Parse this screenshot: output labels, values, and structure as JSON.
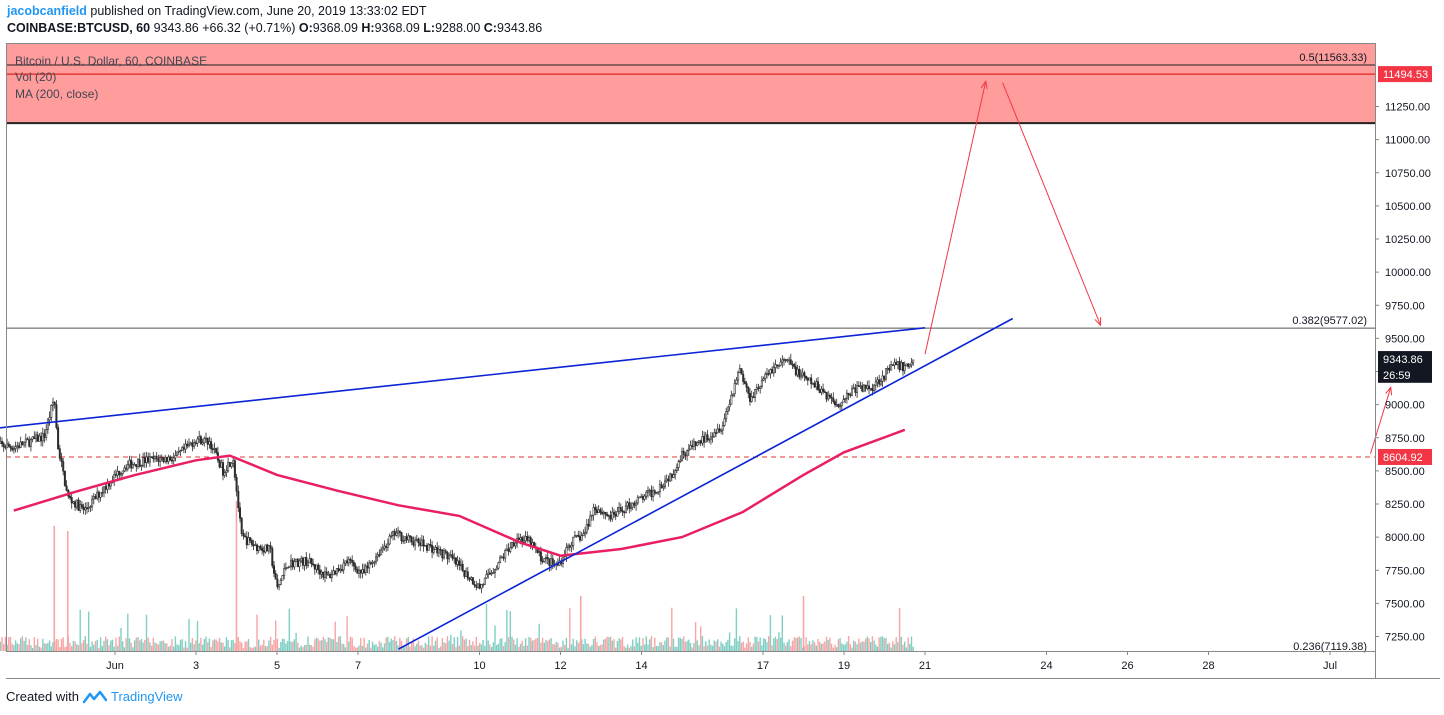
{
  "header": {
    "author": "jacobcanfield",
    "published_text": " published on TradingView.com, June 20, 2019 13:33:02 EDT",
    "symbol": "COINBASE:BTCUSD, 60",
    "last": "9343.86",
    "change": "+66.32 (+0.71%)",
    "o_label": "O:",
    "o": "9368.09",
    "h_label": "H:",
    "h": "9368.09",
    "l_label": "L:",
    "l": "9288.00",
    "c_label": "C:",
    "c": "9343.86"
  },
  "legend": {
    "title": "Bitcoin / U.S. Dollar, 60, COINBASE",
    "vol": "Vol (20)",
    "ma": "MA (200, close)"
  },
  "footer": {
    "created_with": "Created with",
    "brand": "TradingView"
  },
  "colors": {
    "up": "#2b2b2b",
    "down": "#2b2b2b",
    "ma": "#e91e63",
    "trend": "#0a24d6",
    "zone": "#ff9d9d",
    "arrow": "#f23645",
    "vol_up": "#7fcfc4",
    "vol_down": "#f7a6a6"
  },
  "chart_data": {
    "type": "candlestick",
    "y_axis": {
      "range": [
        7150,
        11650
      ],
      "ticks": [
        "11250.00",
        "11000.00",
        "10750.00",
        "10500.00",
        "10250.00",
        "10000.00",
        "9750.00",
        "9500.00",
        "9250.00",
        "9000.00",
        "8750.00",
        "8500.00",
        "8250.00",
        "8000.00",
        "7750.00",
        "7500.00",
        "7250.00"
      ]
    },
    "x_axis": {
      "ticks": [
        "Jun",
        "3",
        "5",
        "7",
        "10",
        "12",
        "14",
        "17",
        "19",
        "21",
        "24",
        "26",
        "28",
        "Jul"
      ]
    },
    "price_tags": [
      {
        "label": "11494.53",
        "value": 11494.53,
        "style": "red"
      },
      {
        "label": "9343.86",
        "value": 9343.86,
        "style": "dark"
      },
      {
        "label": "26:59",
        "value": 9225,
        "style": "dark"
      },
      {
        "label": "8604.92",
        "value": 8604.92,
        "style": "red"
      }
    ],
    "fib_levels": [
      {
        "label": "0.5(11563.33)",
        "value": 11563.33
      },
      {
        "label": "0.382(9577.02)",
        "value": 9577.02
      },
      {
        "label": "0.236(7119.38)",
        "value": 7119.38
      }
    ],
    "resistance_zone": {
      "from": 11125,
      "to": 11640,
      "line": 11494.53
    },
    "dashed_level": 8604.92,
    "last_price": 9343.86,
    "ma200": [
      {
        "date": "May 29 12:00",
        "price": 8200
      },
      {
        "date": "May 31 00:00",
        "price": 8340
      },
      {
        "date": "Jun 1 12:00",
        "price": 8470
      },
      {
        "date": "Jun 3 00:00",
        "price": 8580
      },
      {
        "date": "Jun 3 20:00",
        "price": 8615
      },
      {
        "date": "Jun 5 00:00",
        "price": 8470
      },
      {
        "date": "Jun 6 12:00",
        "price": 8350
      },
      {
        "date": "Jun 8 00:00",
        "price": 8240
      },
      {
        "date": "Jun 9 12:00",
        "price": 8160
      },
      {
        "date": "Jun 11 00:00",
        "price": 7960
      },
      {
        "date": "Jun 12 00:00",
        "price": 7860
      },
      {
        "date": "Jun 13 12:00",
        "price": 7910
      },
      {
        "date": "Jun 15 00:00",
        "price": 8000
      },
      {
        "date": "Jun 16 12:00",
        "price": 8190
      },
      {
        "date": "Jun 18 00:00",
        "price": 8470
      },
      {
        "date": "Jun 19 00:00",
        "price": 8640
      },
      {
        "date": "Jun 20 12:00",
        "price": 8810
      }
    ],
    "trendlines": [
      {
        "name": "upper",
        "from": {
          "date": "May 29 00:00",
          "price": 8820
        },
        "to": {
          "date": "Jun 21 00:00",
          "price": 9580
        }
      },
      {
        "name": "lower",
        "from": {
          "date": "Jun 8 00:00",
          "price": 7155
        },
        "to": {
          "date": "Jun 23 04:00",
          "price": 9650
        }
      }
    ],
    "arrows": [
      {
        "from": {
          "date": "Jun 21 00:00",
          "price": 9380
        },
        "to": {
          "date": "Jun 22 12:00",
          "price": 11440
        }
      },
      {
        "from": {
          "date": "Jun 22 22:00",
          "price": 11430
        },
        "to": {
          "date": "Jun 25 08:00",
          "price": 9600
        }
      },
      {
        "from": {
          "date": "Jul 2 00:00",
          "price": 8630
        },
        "to": {
          "date": "Jul 2 12:00",
          "price": 9130
        }
      }
    ],
    "price_path": [
      {
        "date": "May 29 00:00",
        "price": 8700
      },
      {
        "date": "May 29 12:00",
        "price": 8680
      },
      {
        "date": "May 30 06:00",
        "price": 8760
      },
      {
        "date": "May 30 12:00",
        "price": 9050
      },
      {
        "date": "May 30 14:00",
        "price": 8700
      },
      {
        "date": "May 30 20:00",
        "price": 8300
      },
      {
        "date": "May 31 06:00",
        "price": 8200
      },
      {
        "date": "May 31 18:00",
        "price": 8380
      },
      {
        "date": "Jun 1 06:00",
        "price": 8540
      },
      {
        "date": "Jun 1 18:00",
        "price": 8580
      },
      {
        "date": "Jun 2 12:00",
        "price": 8600
      },
      {
        "date": "Jun 3 00:00",
        "price": 8740
      },
      {
        "date": "Jun 3 08:00",
        "price": 8720
      },
      {
        "date": "Jun 3 16:00",
        "price": 8500
      },
      {
        "date": "Jun 3 22:00",
        "price": 8600
      },
      {
        "date": "Jun 4 03:00",
        "price": 8000
      },
      {
        "date": "Jun 4 12:00",
        "price": 7930
      },
      {
        "date": "Jun 4 20:00",
        "price": 7900
      },
      {
        "date": "Jun 5 00:00",
        "price": 7600
      },
      {
        "date": "Jun 5 06:00",
        "price": 7800
      },
      {
        "date": "Jun 5 18:00",
        "price": 7820
      },
      {
        "date": "Jun 6 06:00",
        "price": 7700
      },
      {
        "date": "Jun 6 18:00",
        "price": 7820
      },
      {
        "date": "Jun 7 03:00",
        "price": 7720
      },
      {
        "date": "Jun 7 12:00",
        "price": 7880
      },
      {
        "date": "Jun 7 22:00",
        "price": 8030
      },
      {
        "date": "Jun 8 06:00",
        "price": 7980
      },
      {
        "date": "Jun 8 18:00",
        "price": 7930
      },
      {
        "date": "Jun 9 06:00",
        "price": 7850
      },
      {
        "date": "Jun 9 18:00",
        "price": 7700
      },
      {
        "date": "Jun 10 00:00",
        "price": 7620
      },
      {
        "date": "Jun 10 12:00",
        "price": 7820
      },
      {
        "date": "Jun 10 22:00",
        "price": 8000
      },
      {
        "date": "Jun 11 06:00",
        "price": 7960
      },
      {
        "date": "Jun 11 12:00",
        "price": 7850
      },
      {
        "date": "Jun 11 22:00",
        "price": 7780
      },
      {
        "date": "Jun 12 06:00",
        "price": 7960
      },
      {
        "date": "Jun 12 14:00",
        "price": 8020
      },
      {
        "date": "Jun 12 20:00",
        "price": 8230
      },
      {
        "date": "Jun 13 06:00",
        "price": 8150
      },
      {
        "date": "Jun 13 18:00",
        "price": 8250
      },
      {
        "date": "Jun 14 08:00",
        "price": 8350
      },
      {
        "date": "Jun 14 18:00",
        "price": 8480
      },
      {
        "date": "Jun 15 00:00",
        "price": 8630
      },
      {
        "date": "Jun 15 12:00",
        "price": 8730
      },
      {
        "date": "Jun 16 00:00",
        "price": 8850
      },
      {
        "date": "Jun 16 06:00",
        "price": 9100
      },
      {
        "date": "Jun 16 10:00",
        "price": 9280
      },
      {
        "date": "Jun 16 16:00",
        "price": 9050
      },
      {
        "date": "Jun 16 22:00",
        "price": 9150
      },
      {
        "date": "Jun 17 06:00",
        "price": 9280
      },
      {
        "date": "Jun 17 14:00",
        "price": 9330
      },
      {
        "date": "Jun 18 00:00",
        "price": 9200
      },
      {
        "date": "Jun 18 10:00",
        "price": 9120
      },
      {
        "date": "Jun 18 20:00",
        "price": 9000
      },
      {
        "date": "Jun 19 06:00",
        "price": 9120
      },
      {
        "date": "Jun 19 16:00",
        "price": 9130
      },
      {
        "date": "Jun 20 06:00",
        "price": 9300
      },
      {
        "date": "Jun 20 12:00",
        "price": 9280
      },
      {
        "date": "Jun 20 18:00",
        "price": 9343.86
      }
    ]
  }
}
